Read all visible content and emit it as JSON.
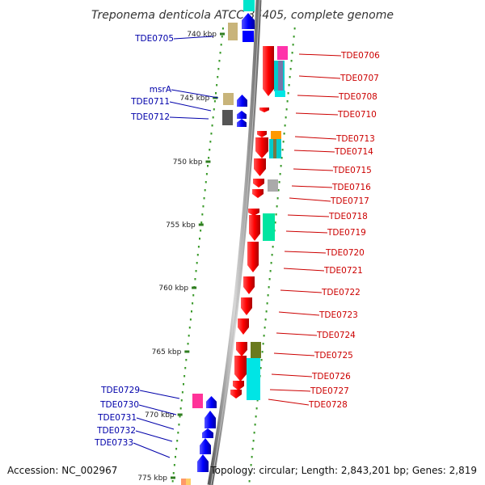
{
  "title": "Treponema denticola ATCC 35405, complete genome",
  "accession": "Accession: NC_002967",
  "summary": "Topology: circular; Length: 2,843,201 bp; Genes: 2,819",
  "colors": {
    "forward_strand": "#0000ff",
    "reverse_strand": "#ff0000",
    "forward_label": "#0000aa",
    "reverse_label": "#cc0000",
    "backbone": "#8a8a8a",
    "tick": "#2f7d20",
    "dots": "#3a9a2a"
  },
  "ticks": [
    {
      "label": "740 kbp"
    },
    {
      "label": "745 kbp"
    },
    {
      "label": "750 kbp"
    },
    {
      "label": "755 kbp"
    },
    {
      "label": "760 kbp"
    },
    {
      "label": "765 kbp"
    },
    {
      "label": "770 kbp"
    },
    {
      "label": "775 kbp"
    }
  ],
  "forward_genes": [
    {
      "label": "TDE0705"
    },
    {
      "label": "msrA"
    },
    {
      "label": "TDE0711"
    },
    {
      "label": "TDE0712"
    },
    {
      "label": "TDE0729"
    },
    {
      "label": "TDE0730"
    },
    {
      "label": "TDE0731"
    },
    {
      "label": "TDE0732"
    },
    {
      "label": "TDE0733"
    }
  ],
  "reverse_genes": [
    {
      "label": "TDE0706"
    },
    {
      "label": "TDE0707"
    },
    {
      "label": "TDE0708"
    },
    {
      "label": "TDE0710"
    },
    {
      "label": "TDE0713"
    },
    {
      "label": "TDE0714"
    },
    {
      "label": "TDE0715"
    },
    {
      "label": "TDE0716"
    },
    {
      "label": "TDE0717"
    },
    {
      "label": "TDE0718"
    },
    {
      "label": "TDE0719"
    },
    {
      "label": "TDE0720"
    },
    {
      "label": "TDE0721"
    },
    {
      "label": "TDE0722"
    },
    {
      "label": "TDE0723"
    },
    {
      "label": "TDE0724"
    },
    {
      "label": "TDE0725"
    },
    {
      "label": "TDE0726"
    },
    {
      "label": "TDE0727"
    },
    {
      "label": "TDE0728"
    }
  ]
}
